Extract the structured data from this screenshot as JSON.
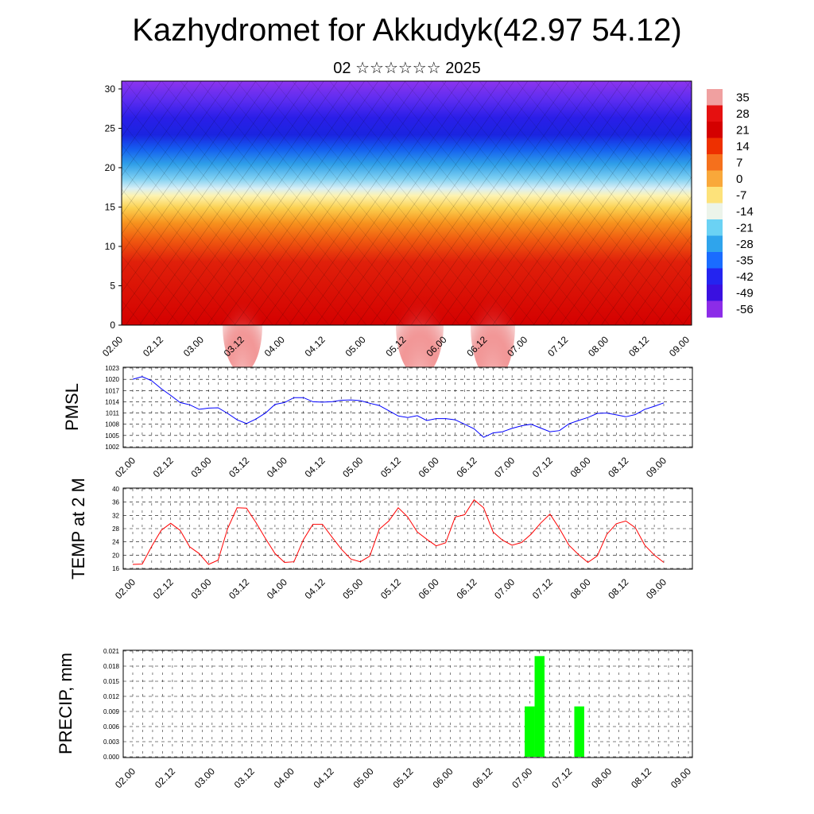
{
  "title": "Kazhydromet for Akkudyk(42.97 54.12)",
  "subtitle": "02 ☆☆☆☆☆☆ 2025",
  "x_labels": [
    "02.00",
    "02.12",
    "03.00",
    "03.12",
    "04.00",
    "04.12",
    "05.00",
    "05.12",
    "06.00",
    "06.12",
    "07.00",
    "07.12",
    "08.00",
    "08.12",
    "09.00"
  ],
  "colors": {
    "pmsl_line": "#0000ff",
    "temp_line": "#ff0000",
    "precip_bar": "#00ff00"
  },
  "chart_data": [
    {
      "type": "heatmap",
      "description_key": "wind-temperature cross-section",
      "x": [
        "02.00",
        "02.12",
        "03.00",
        "03.12",
        "04.00",
        "04.12",
        "05.00",
        "05.12",
        "06.00",
        "06.12",
        "07.00",
        "07.12",
        "08.00",
        "08.12",
        "09.00"
      ],
      "y_ticks": [
        0,
        5,
        10,
        15,
        20,
        25,
        30
      ],
      "ylim": [
        0,
        31
      ],
      "colorbar": {
        "labels": [
          "35",
          "28",
          "21",
          "14",
          "7",
          "0",
          "-7",
          "-14",
          "-21",
          "-28",
          "-35",
          "-42",
          "-49",
          "-56"
        ],
        "colors": [
          "#f0a0a0",
          "#e51010",
          "#d40000",
          "#ee3000",
          "#f5701c",
          "#f9a83a",
          "#fde27a",
          "#ecf4ea",
          "#6bd2f4",
          "#2fa4ec",
          "#1a6cff",
          "#2424f0",
          "#3a10e0",
          "#8c2ce8"
        ]
      }
    },
    {
      "type": "line",
      "ylabel": "PMSL",
      "yticks": [
        1002,
        1005,
        1008,
        1011,
        1014,
        1017,
        1020,
        1023
      ],
      "ylim": [
        1002,
        1023
      ],
      "series": [
        {
          "values": [
            1020.0,
            1020.7,
            1019.6,
            1017.5,
            1015.7,
            1013.8,
            1013.2,
            1012.0,
            1012.3,
            1012.4,
            1010.9,
            1009.2,
            1008.2,
            1009.4,
            1011.0,
            1013.3,
            1013.8,
            1015.1,
            1015.1,
            1014.0,
            1013.9,
            1014.0,
            1014.4,
            1014.5,
            1014.3,
            1013.6,
            1013.0,
            1011.6,
            1010.2,
            1009.8,
            1010.3,
            1009.0,
            1009.5,
            1009.5,
            1009.2,
            1008.0,
            1006.8,
            1004.5,
            1005.7,
            1006.0,
            1006.9,
            1007.6,
            1008.0,
            1007.0,
            1006.0,
            1006.3,
            1008.1,
            1009.0,
            1009.8,
            1010.9,
            1011.0,
            1010.5,
            1010.0,
            1010.6,
            1012.0,
            1012.8,
            1013.7
          ]
        }
      ]
    },
    {
      "type": "line",
      "ylabel": "TEMP at 2 M",
      "yticks": [
        16,
        20,
        24,
        28,
        32,
        36,
        40
      ],
      "ylim": [
        16,
        40
      ],
      "series": [
        {
          "values": [
            17.2,
            17.3,
            22.7,
            27.5,
            29.6,
            27.5,
            22.5,
            20.5,
            17.2,
            18.5,
            28.0,
            34.3,
            34.2,
            29.8,
            25.0,
            20.5,
            17.8,
            18.0,
            24.7,
            29.3,
            29.3,
            25.5,
            21.8,
            18.8,
            18.0,
            19.7,
            27.8,
            30.3,
            34.3,
            31.5,
            27.0,
            24.8,
            22.8,
            23.7,
            31.5,
            32.2,
            36.7,
            34.3,
            27.0,
            24.5,
            23.0,
            23.8,
            26.3,
            29.6,
            32.4,
            28.0,
            23.0,
            20.2,
            17.8,
            19.8,
            26.3,
            29.5,
            30.3,
            28.3,
            23.0,
            20.0,
            17.8
          ]
        }
      ]
    },
    {
      "type": "bar",
      "ylabel": "PRECIP, mm",
      "yticks": [
        "0.000",
        "0.003",
        "0.006",
        "0.009",
        "0.012",
        "0.015",
        "0.018",
        "0.021"
      ],
      "ylim": [
        0,
        0.021
      ],
      "series": [
        {
          "values": [
            0,
            0,
            0,
            0,
            0,
            0,
            0,
            0,
            0,
            0,
            0,
            0,
            0,
            0,
            0,
            0,
            0,
            0,
            0,
            0,
            0,
            0,
            0,
            0,
            0,
            0,
            0,
            0,
            0,
            0,
            0,
            0,
            0,
            0,
            0,
            0,
            0,
            0,
            0,
            0,
            0.01,
            0.02,
            0,
            0,
            0,
            0.01,
            0,
            0,
            0,
            0,
            0,
            0,
            0,
            0,
            0,
            0,
            0
          ]
        }
      ]
    }
  ]
}
